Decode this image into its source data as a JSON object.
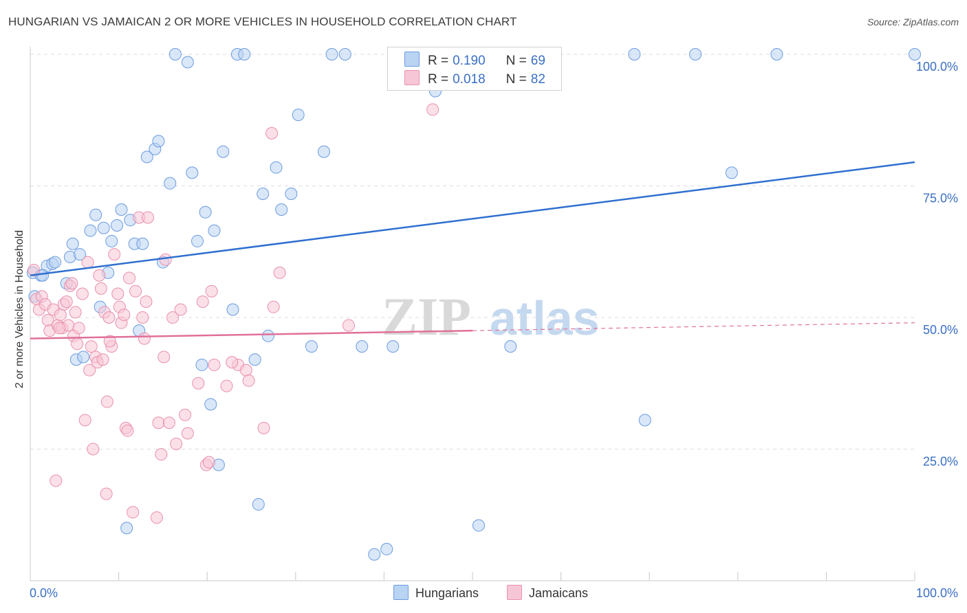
{
  "title": "HUNGARIAN VS JAMAICAN 2 OR MORE VEHICLES IN HOUSEHOLD CORRELATION CHART",
  "source": "Source: ZipAtlas.com",
  "watermark": {
    "zip": "ZIP",
    "atlas": "atlas"
  },
  "legend": {
    "rows": [
      {
        "r_label": "R =",
        "r_value": "0.190",
        "n_label": "N =",
        "n_value": "69"
      },
      {
        "r_label": "R =",
        "r_value": "0.018",
        "n_label": "N =",
        "n_value": "82"
      }
    ]
  },
  "bottom_legend": {
    "hungarians": "Hungarians",
    "jamaicans": "Jamaicans"
  },
  "colors": {
    "hungarian_fill": "#b9d3f2",
    "hungarian_stroke": "#6b9be0",
    "hungarian_line": "#2f6fcf",
    "jamaican_fill": "#f7c6d6",
    "jamaican_stroke": "#e890ad",
    "jamaican_line": "#e0709a",
    "tick_label": "#3a6fc4"
  },
  "chart_data": {
    "type": "scatter",
    "title": "HUNGARIAN VS JAMAICAN 2 OR MORE VEHICLES IN HOUSEHOLD CORRELATION CHART",
    "xlabel": "",
    "ylabel": "2 or more Vehicles in Household",
    "xlim": [
      0,
      100
    ],
    "ylim": [
      0,
      100
    ],
    "x_tick_labels": [
      "0.0%",
      "100.0%"
    ],
    "y_ticks": [
      25,
      50,
      75,
      100
    ],
    "y_tick_labels": [
      "25.0%",
      "50.0%",
      "75.0%",
      "100.0%"
    ],
    "series": [
      {
        "name": "Hungarians",
        "r": 0.19,
        "n": 69,
        "trend": {
          "x": [
            0,
            100
          ],
          "y": [
            58.0,
            79.5
          ]
        },
        "points": [
          [
            0.3,
            58.5
          ],
          [
            0.5,
            54.0
          ],
          [
            1.2,
            58.0
          ],
          [
            1.9,
            59.8
          ],
          [
            2.5,
            60.2
          ],
          [
            2.8,
            60.5
          ],
          [
            4.1,
            56.5
          ],
          [
            4.5,
            61.5
          ],
          [
            4.8,
            64.0
          ],
          [
            5.2,
            42.0
          ],
          [
            5.6,
            62.0
          ],
          [
            6.0,
            42.5
          ],
          [
            6.8,
            66.5
          ],
          [
            7.4,
            69.5
          ],
          [
            7.9,
            52.0
          ],
          [
            8.3,
            67.0
          ],
          [
            8.8,
            58.5
          ],
          [
            9.2,
            64.5
          ],
          [
            9.8,
            67.5
          ],
          [
            10.3,
            70.5
          ],
          [
            10.9,
            10.0
          ],
          [
            11.3,
            68.5
          ],
          [
            11.8,
            64.0
          ],
          [
            12.3,
            47.5
          ],
          [
            12.7,
            64.0
          ],
          [
            13.2,
            80.5
          ],
          [
            14.1,
            82.0
          ],
          [
            14.5,
            83.5
          ],
          [
            15.0,
            60.5
          ],
          [
            15.8,
            75.5
          ],
          [
            16.4,
            100.0
          ],
          [
            17.8,
            98.5
          ],
          [
            18.3,
            77.5
          ],
          [
            18.9,
            64.5
          ],
          [
            19.4,
            41.0
          ],
          [
            19.8,
            70.0
          ],
          [
            20.4,
            33.5
          ],
          [
            20.8,
            66.5
          ],
          [
            21.3,
            22.0
          ],
          [
            21.8,
            81.5
          ],
          [
            22.9,
            51.5
          ],
          [
            23.4,
            100.0
          ],
          [
            24.2,
            100.0
          ],
          [
            25.4,
            42.0
          ],
          [
            25.8,
            14.5
          ],
          [
            26.3,
            73.5
          ],
          [
            26.9,
            46.5
          ],
          [
            27.8,
            78.5
          ],
          [
            28.4,
            70.5
          ],
          [
            29.5,
            73.5
          ],
          [
            30.3,
            88.5
          ],
          [
            31.8,
            44.5
          ],
          [
            33.2,
            81.5
          ],
          [
            34.1,
            100.0
          ],
          [
            35.6,
            100.0
          ],
          [
            37.5,
            44.5
          ],
          [
            38.9,
            5.0
          ],
          [
            40.3,
            6.0
          ],
          [
            41.0,
            44.5
          ],
          [
            45.8,
            93.0
          ],
          [
            50.7,
            10.5
          ],
          [
            54.3,
            44.5
          ],
          [
            68.3,
            100.0
          ],
          [
            69.5,
            30.5
          ],
          [
            75.2,
            100.0
          ],
          [
            79.3,
            77.5
          ],
          [
            84.4,
            100.0
          ],
          [
            100.0,
            100.0
          ],
          [
            1.4,
            58.0
          ]
        ]
      },
      {
        "name": "Jamaicans",
        "r": 0.018,
        "n": 82,
        "trend": {
          "x": [
            0,
            50
          ],
          "y": [
            46.0,
            47.5
          ]
        },
        "trend_dashed": {
          "x": [
            50,
            100
          ],
          "y": [
            47.5,
            49.0
          ]
        },
        "points": [
          [
            0.4,
            59.0
          ],
          [
            0.7,
            53.5
          ],
          [
            1.0,
            51.5
          ],
          [
            1.3,
            54.0
          ],
          [
            1.7,
            52.5
          ],
          [
            2.0,
            49.5
          ],
          [
            2.2,
            47.5
          ],
          [
            2.6,
            51.5
          ],
          [
            2.9,
            19.0
          ],
          [
            3.1,
            48.5
          ],
          [
            3.4,
            50.5
          ],
          [
            3.6,
            48.0
          ],
          [
            3.8,
            52.5
          ],
          [
            4.1,
            53.0
          ],
          [
            4.3,
            48.5
          ],
          [
            4.5,
            56.0
          ],
          [
            4.7,
            56.5
          ],
          [
            4.9,
            46.5
          ],
          [
            5.1,
            51.0
          ],
          [
            5.5,
            48.0
          ],
          [
            5.9,
            54.5
          ],
          [
            6.2,
            30.5
          ],
          [
            6.5,
            60.5
          ],
          [
            6.7,
            40.0
          ],
          [
            6.9,
            44.5
          ],
          [
            7.1,
            25.0
          ],
          [
            7.4,
            42.5
          ],
          [
            7.6,
            41.5
          ],
          [
            7.8,
            58.0
          ],
          [
            8.0,
            55.5
          ],
          [
            8.4,
            51.0
          ],
          [
            8.6,
            16.5
          ],
          [
            8.7,
            34.0
          ],
          [
            8.9,
            50.0
          ],
          [
            9.2,
            44.5
          ],
          [
            9.5,
            62.0
          ],
          [
            9.9,
            54.5
          ],
          [
            10.1,
            52.0
          ],
          [
            10.3,
            49.0
          ],
          [
            10.6,
            50.5
          ],
          [
            10.8,
            29.0
          ],
          [
            11.0,
            28.5
          ],
          [
            11.2,
            57.5
          ],
          [
            11.6,
            13.0
          ],
          [
            11.9,
            55.0
          ],
          [
            12.3,
            69.0
          ],
          [
            12.7,
            50.0
          ],
          [
            12.9,
            46.0
          ],
          [
            13.1,
            53.0
          ],
          [
            13.3,
            69.0
          ],
          [
            14.3,
            12.0
          ],
          [
            14.5,
            30.0
          ],
          [
            14.8,
            24.0
          ],
          [
            15.1,
            42.5
          ],
          [
            15.7,
            30.0
          ],
          [
            16.1,
            50.0
          ],
          [
            16.5,
            26.0
          ],
          [
            17.0,
            51.5
          ],
          [
            17.5,
            31.5
          ],
          [
            17.8,
            28.0
          ],
          [
            19.0,
            37.5
          ],
          [
            19.5,
            53.0
          ],
          [
            19.9,
            22.0
          ],
          [
            20.2,
            22.5
          ],
          [
            20.5,
            55.0
          ],
          [
            20.8,
            41.0
          ],
          [
            22.2,
            37.0
          ],
          [
            23.5,
            41.0
          ],
          [
            24.4,
            40.0
          ],
          [
            24.7,
            38.0
          ],
          [
            26.4,
            29.0
          ],
          [
            27.3,
            85.0
          ],
          [
            28.2,
            58.5
          ],
          [
            36.0,
            48.5
          ],
          [
            45.5,
            89.5
          ],
          [
            22.8,
            41.5
          ],
          [
            15.3,
            61.0
          ],
          [
            8.2,
            42.0
          ],
          [
            3.3,
            48.0
          ],
          [
            5.3,
            45.0
          ],
          [
            9.0,
            45.5
          ],
          [
            27.5,
            52.0
          ]
        ]
      }
    ]
  }
}
